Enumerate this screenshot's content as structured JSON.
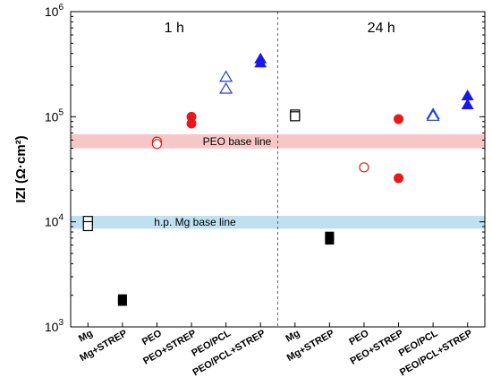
{
  "chart_data": {
    "type": "scatter",
    "ylabel": "IZI (Ω·cm²)",
    "yscale": "log",
    "ylim": [
      1000,
      1000000
    ],
    "y_ticks": [
      {
        "value": 1000,
        "base": "10",
        "exp": "3"
      },
      {
        "value": 10000,
        "base": "10",
        "exp": "4"
      },
      {
        "value": 100000,
        "base": "10",
        "exp": "5"
      },
      {
        "value": 1000000,
        "base": "10",
        "exp": "6"
      }
    ],
    "categories": [
      "Mg",
      "Mg+STREP",
      "PEO",
      "PEO+STREP",
      "PEO/PCL",
      "PEO/PCL+STREP",
      "Mg",
      "Mg+STREP",
      "PEO",
      "PEO+STREP",
      "PEO/PCL",
      "PEO/PCL+STREP"
    ],
    "panels": [
      {
        "label": "1 h",
        "categories": [
          0,
          1,
          2,
          3,
          4,
          5
        ]
      },
      {
        "label": "24 h",
        "categories": [
          6,
          7,
          8,
          9,
          10,
          11
        ]
      }
    ],
    "baselines": [
      {
        "label": "PEO base line",
        "y_low": 50000,
        "y_high": 68000,
        "color": "#f7c6c6"
      },
      {
        "label": "h.p. Mg base line",
        "y_low": 8600,
        "y_high": 11400,
        "color": "#bfe0f0"
      }
    ],
    "series": [
      {
        "marker": "open-square",
        "color": "#000000",
        "points": [
          {
            "x": 0,
            "y": 10200
          },
          {
            "x": 0,
            "y": 9100
          },
          {
            "x": 6,
            "y": 105000
          },
          {
            "x": 6,
            "y": 101000
          }
        ]
      },
      {
        "marker": "filled-square",
        "color": "#000000",
        "points": [
          {
            "x": 1,
            "y": 1850
          },
          {
            "x": 1,
            "y": 1750
          },
          {
            "x": 7,
            "y": 7300
          },
          {
            "x": 7,
            "y": 6700
          }
        ]
      },
      {
        "marker": "open-circle",
        "color": "#e8191b",
        "points": [
          {
            "x": 2,
            "y": 58000
          },
          {
            "x": 2,
            "y": 55000
          },
          {
            "x": 8,
            "y": 33000
          }
        ]
      },
      {
        "marker": "filled-circle",
        "color": "#e8191b",
        "points": [
          {
            "x": 3,
            "y": 100000
          },
          {
            "x": 3,
            "y": 86000
          },
          {
            "x": 9,
            "y": 95000
          },
          {
            "x": 9,
            "y": 26000
          }
        ]
      },
      {
        "marker": "open-triangle",
        "color": "#1f3fd6",
        "points": [
          {
            "x": 4,
            "y": 240000
          },
          {
            "x": 4,
            "y": 185000
          },
          {
            "x": 10,
            "y": 106000
          },
          {
            "x": 10,
            "y": 102000
          }
        ]
      },
      {
        "marker": "filled-triangle",
        "color": "#1818e8",
        "points": [
          {
            "x": 5,
            "y": 355000
          },
          {
            "x": 5,
            "y": 325000
          },
          {
            "x": 11,
            "y": 158000
          },
          {
            "x": 11,
            "y": 130000
          }
        ]
      }
    ]
  }
}
